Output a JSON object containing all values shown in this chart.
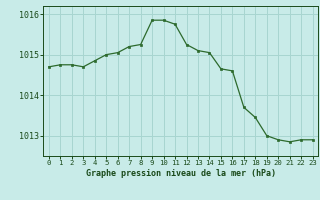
{
  "hours": [
    0,
    1,
    2,
    3,
    4,
    5,
    6,
    7,
    8,
    9,
    10,
    11,
    12,
    13,
    14,
    15,
    16,
    17,
    18,
    19,
    20,
    21,
    22,
    23
  ],
  "pressure": [
    1014.7,
    1014.75,
    1014.75,
    1014.7,
    1014.85,
    1015.0,
    1015.05,
    1015.2,
    1015.25,
    1015.85,
    1015.85,
    1015.75,
    1015.25,
    1015.1,
    1015.05,
    1014.65,
    1014.6,
    1013.7,
    1013.45,
    1013.0,
    1012.9,
    1012.85,
    1012.9,
    1012.9
  ],
  "line_color": "#2d6a2d",
  "marker_color": "#2d6a2d",
  "bg_color": "#c8ebe8",
  "grid_color": "#a8d5d0",
  "xlabel": "Graphe pression niveau de la mer (hPa)",
  "xlabel_color": "#1a4a1a",
  "tick_color": "#1a4a1a",
  "ylim": [
    1012.5,
    1016.2
  ],
  "yticks": [
    1013,
    1014,
    1015,
    1016
  ],
  "xtick_labels": [
    "0",
    "1",
    "2",
    "3",
    "4",
    "5",
    "6",
    "7",
    "8",
    "9",
    "10",
    "11",
    "12",
    "13",
    "14",
    "15",
    "16",
    "17",
    "18",
    "19",
    "20",
    "21",
    "22",
    "23"
  ]
}
